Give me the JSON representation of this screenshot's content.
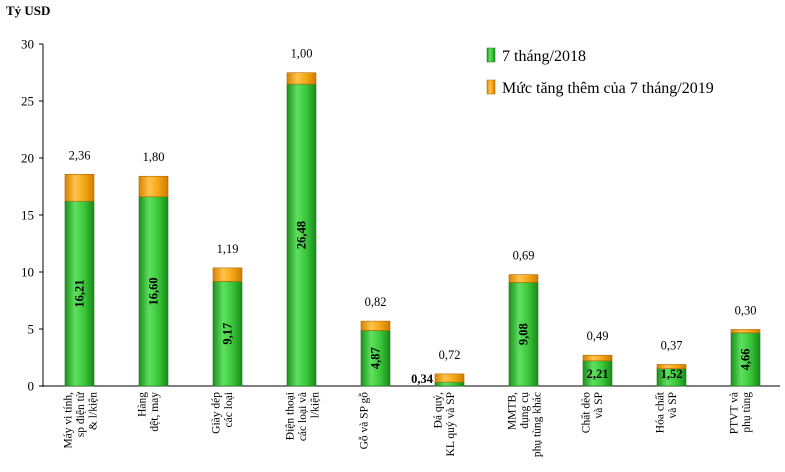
{
  "chart_data": {
    "type": "bar",
    "stacked": true,
    "ylabel": "Tỷ USD",
    "ylim": [
      0,
      30
    ],
    "yticks": [
      "0",
      "5",
      "10",
      "15",
      "20",
      "25",
      "30"
    ],
    "legend_position": "top-right",
    "categories": [
      [
        "Máy vi tính,",
        "sp điện tử",
        "& l/kiện"
      ],
      [
        "Hàng",
        "dệt, may"
      ],
      [
        "Giày dép",
        "các loại"
      ],
      [
        "Điện thoại",
        "các loại và",
        "l/kiện"
      ],
      [
        "Gỗ và SP gỗ"
      ],
      [
        "Đá quý,",
        "KL quý và SP"
      ],
      [
        "MMTB,",
        "dụng cụ",
        "phụ tùng khác"
      ],
      [
        "Chất dẻo",
        "và SP"
      ],
      [
        "Hóa chất",
        "và SP"
      ],
      [
        "PTVT và",
        "phụ tùng"
      ]
    ],
    "series": [
      {
        "name": "7 tháng/2018",
        "color": "#2fb52f",
        "values": [
          16.21,
          16.6,
          9.17,
          26.48,
          4.87,
          0.34,
          9.08,
          2.21,
          1.52,
          4.66
        ],
        "labels": [
          "16,21",
          "16,60",
          "9,17",
          "26,48",
          "4,87",
          "0,34",
          "9,08",
          "2,21",
          "1,52",
          "4,66"
        ]
      },
      {
        "name": "Mức tăng thêm của 7 tháng/2019",
        "color": "#f0a000",
        "values": [
          2.36,
          1.8,
          1.19,
          1.0,
          0.82,
          0.72,
          0.69,
          0.49,
          0.37,
          0.3
        ],
        "labels": [
          "2,36",
          "1,80",
          "1,19",
          "1,00",
          "0,82",
          "0,72",
          "0,69",
          "0,49",
          "0,37",
          "0,30"
        ]
      }
    ]
  }
}
